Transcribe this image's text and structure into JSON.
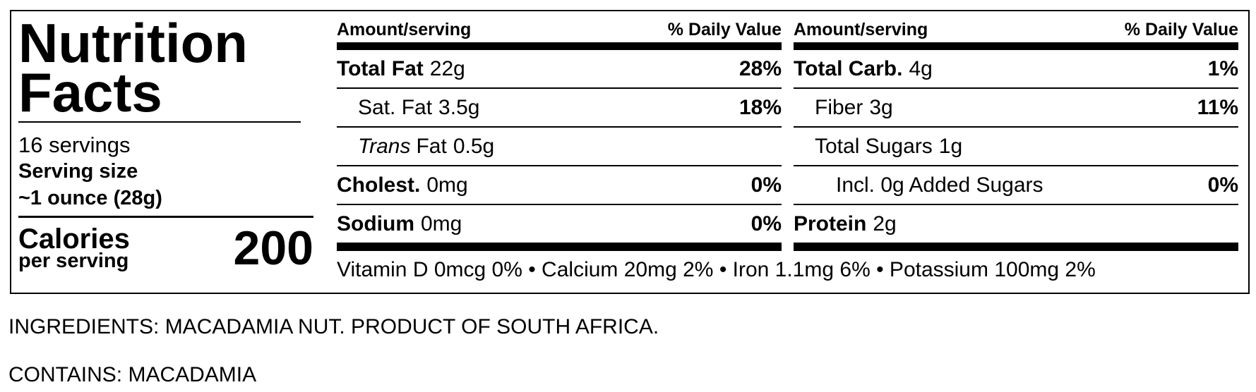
{
  "label": {
    "title": "Nutrition Facts",
    "servings": "16 servings",
    "serving_size_label": "Serving size",
    "serving_size": "~1 ounce (28g)",
    "calories_label": "Calories",
    "calories_sub": "per serving",
    "calories": "200",
    "columns": [
      {
        "header_left": "Amount/serving",
        "header_right": "% Daily Value",
        "rows": [
          {
            "name": "Total Fat",
            "bold": true,
            "indent": 0,
            "amount": "22g",
            "dv": "28%"
          },
          {
            "name": "Sat. Fat",
            "bold": false,
            "indent": 1,
            "amount": "3.5g",
            "dv": "18%"
          },
          {
            "name": "Trans",
            "italic": true,
            "name_after": "Fat",
            "bold": false,
            "indent": 1,
            "amount": "0.5g"
          },
          {
            "name": "Cholest.",
            "bold": true,
            "indent": 0,
            "amount": "0mg",
            "dv": "0%"
          },
          {
            "name": "Sodium",
            "bold": true,
            "indent": 0,
            "amount": "0mg",
            "dv": "0%"
          }
        ]
      },
      {
        "header_left": "Amount/serving",
        "header_right": "% Daily Value",
        "rows": [
          {
            "name": "Total Carb.",
            "bold": true,
            "indent": 0,
            "amount": "4g",
            "dv": "1%"
          },
          {
            "name": "Fiber",
            "bold": false,
            "indent": 1,
            "amount": "3g",
            "dv": "11%"
          },
          {
            "name": "Total Sugars",
            "bold": false,
            "indent": 1,
            "amount": "1g"
          },
          {
            "name": "Incl. 0g Added Sugars",
            "bold": false,
            "indent": 2,
            "dv": "0%"
          },
          {
            "name": "Protein",
            "bold": true,
            "indent": 0,
            "amount": "2g"
          }
        ]
      }
    ],
    "vitamins": "Vitamin D 0mcg 0% • Calcium 20mg 2% • Iron 1.1mg 6% • Potassium 100mg 2%"
  },
  "ingredients": "INGREDIENTS: MACADAMIA NUT. PRODUCT OF SOUTH AFRICA.",
  "contains": "CONTAINS: MACADAMIA"
}
